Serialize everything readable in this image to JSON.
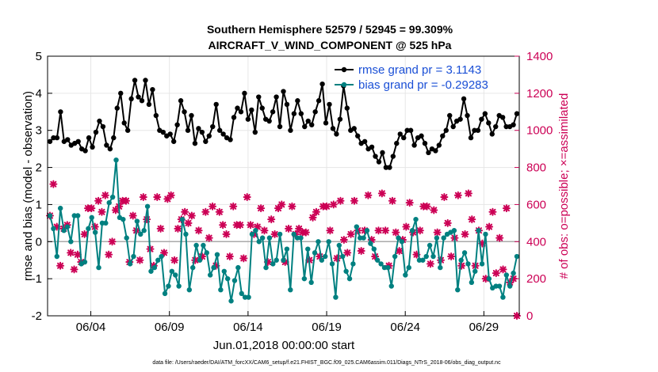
{
  "chart_data": {
    "type": "line",
    "title_line1": "Southern Hemisphere 52579 / 52945 = 99.309%",
    "title_line2": "AIRCRAFT_V_WIND_COMPONENT @ 525 hPa",
    "xlabel": "Jun.01,2018 00:00:00 start",
    "ylabel_left": "rmse and bias (model - observation)",
    "ylabel_right": "# of obs: o=possible; ×=assimilated",
    "footer": "data file: /Users/raeder/DAI/ATM_forcXX/CAM6_setup/f.e21.FHIST_BGC.f09_025.CAM6assim.011/Diags_NTrS_2018-06/obs_diag_output.nc",
    "x_range": [
      1.25,
      31.25
    ],
    "x_ticks": [
      {
        "value": 4,
        "label": "06/04"
      },
      {
        "value": 9,
        "label": "06/09"
      },
      {
        "value": 14,
        "label": "06/14"
      },
      {
        "value": 19,
        "label": "06/19"
      },
      {
        "value": 24,
        "label": "06/24"
      },
      {
        "value": 29,
        "label": "06/29"
      }
    ],
    "ylim_left": [
      -2,
      5
    ],
    "yticks_left": [
      "-2",
      "-1",
      "0",
      "1",
      "2",
      "3",
      "4",
      "5"
    ],
    "ylim_right": [
      0,
      1400
    ],
    "yticks_right": [
      "0",
      "200",
      "400",
      "600",
      "800",
      "1000",
      "1200",
      "1400"
    ],
    "colors": {
      "rmse": "#000000",
      "bias": "#008080",
      "obs": "#cc0055",
      "zero_line": "#aaaaaa",
      "legend_text": "#1a4fd6"
    },
    "series": [
      {
        "name": "rmse",
        "legend": "rmse grand pr = 3.1143",
        "values": [
          2.7,
          2.8,
          2.8,
          3.5,
          2.7,
          2.75,
          2.6,
          2.65,
          2.7,
          2.5,
          2.45,
          2.8,
          2.55,
          2.95,
          3.25,
          3.1,
          2.6,
          2.5,
          2.8,
          3.6,
          4.0,
          3.2,
          3.0,
          3.85,
          4.35,
          3.9,
          3.8,
          4.35,
          3.7,
          4.1,
          3.4,
          3.0,
          2.95,
          2.85,
          2.9,
          2.7,
          3.15,
          3.8,
          3.5,
          3.0,
          3.4,
          2.65,
          3.05,
          2.95,
          2.7,
          2.85,
          3.1,
          3.7,
          3.0,
          2.9,
          2.8,
          2.75,
          3.35,
          3.6,
          3.5,
          4.0,
          3.3,
          3.55,
          2.95,
          3.9,
          3.6,
          3.3,
          3.25,
          3.5,
          3.9,
          3.1,
          4.05,
          3.7,
          3.0,
          3.45,
          3.8,
          3.45,
          3.1,
          3.25,
          3.15,
          3.5,
          3.8,
          4.25,
          3.2,
          3.7,
          3.05,
          2.9,
          3.3,
          4.2,
          3.6,
          3.0,
          3.05,
          2.85,
          2.65,
          2.7,
          2.5,
          2.55,
          2.3,
          2.15,
          2.4,
          2.0,
          2.0,
          2.3,
          2.65,
          2.9,
          2.8,
          3.0,
          3.0,
          2.6,
          2.8,
          2.85,
          2.65,
          2.4,
          2.5,
          2.45,
          2.6,
          2.85,
          3.0,
          3.4,
          3.1,
          3.25,
          3.3,
          3.85,
          3.4,
          2.8,
          3.0,
          3.0,
          3.3,
          3.45,
          3.2,
          2.9,
          3.1,
          3.4,
          3.35,
          3.1,
          3.1,
          3.15,
          3.45
        ]
      },
      {
        "name": "bias",
        "legend": "bias grand pr = -0.29283",
        "values": [
          0.7,
          0.35,
          -0.4,
          0.9,
          0.3,
          0.4,
          0.0,
          0.7,
          0.7,
          -0.6,
          -0.55,
          0.35,
          0.65,
          0.25,
          -0.7,
          0.5,
          0.5,
          1.05,
          1.2,
          2.2,
          0.65,
          0.6,
          0.1,
          -0.6,
          -0.4,
          0.55,
          0.2,
          0.3,
          0.95,
          -0.8,
          -0.7,
          -0.5,
          -0.4,
          -1.4,
          -1.2,
          -0.8,
          -0.9,
          -1.2,
          0.6,
          0.2,
          -1.3,
          -0.7,
          -0.1,
          -0.5,
          -0.1,
          -0.3,
          -0.9,
          -0.7,
          -0.35,
          -1.3,
          -0.8,
          -1.0,
          -1.6,
          -1.05,
          -0.7,
          -1.4,
          -1.5,
          -1.5,
          0.2,
          0.3,
          0.0,
          0.1,
          -0.7,
          0.1,
          -0.6,
          -0.5,
          0.2,
          -0.5,
          -0.2,
          -1.3,
          0.2,
          0.1,
          0.1,
          -1.0,
          -0.2,
          -1.1,
          -0.3,
          0.0,
          -0.5,
          -0.4,
          0.0,
          -0.6,
          -1.5,
          -0.1,
          -0.4,
          -0.8,
          -1.0,
          -0.6,
          0.4,
          0.1,
          0.1,
          0.3,
          -0.05,
          -0.2,
          -0.5,
          -0.6,
          -0.7,
          -0.7,
          -1.2,
          -0.4,
          0.1,
          0.0,
          -0.9,
          -0.7,
          0.3,
          0.6,
          -0.5,
          -0.5,
          -0.4,
          -0.1,
          -0.4,
          0.1,
          -0.7,
          0.1,
          0.2,
          0.25,
          0.3,
          -1.3,
          -0.5,
          -0.3,
          -0.6,
          -1.1,
          -0.8,
          0.3,
          -0.6,
          0.2,
          -1.0,
          -1.25,
          -1.2,
          -1.2,
          -1.5,
          -0.9,
          -1.2,
          -0.85,
          -0.4
        ]
      },
      {
        "name": "obs",
        "axis": "right",
        "values": [
          540,
          710,
          480,
          270,
          470,
          490,
          340,
          250,
          330,
          290,
          440,
          580,
          580,
          480,
          620,
          560,
          650,
          330,
          400,
          570,
          590,
          620,
          620,
          290,
          540,
          460,
          300,
          640,
          520,
          360,
          270,
          640,
          470,
          340,
          630,
          650,
          300,
          470,
          520,
          560,
          500,
          540,
          300,
          460,
          320,
          560,
          420,
          590,
          270,
          560,
          490,
          440,
          320,
          590,
          490,
          490,
          310,
          640,
          490,
          440,
          480,
          580,
          460,
          290,
          520,
          440,
          580,
          600,
          290,
          470,
          590,
          440,
          470,
          450,
          450,
          300,
          530,
          560,
          320,
          590,
          590,
          460,
          600,
          310,
          620,
          410,
          340,
          440,
          620,
          460,
          350,
          460,
          650,
          410,
          320,
          460,
          660,
          460,
          270,
          620,
          450,
          350,
          410,
          480,
          610,
          450,
          330,
          460,
          590,
          590,
          280,
          570,
          450,
          300,
          640,
          500,
          320,
          420,
          650,
          270,
          440,
          660,
          520,
          270,
          460,
          390,
          200,
          480,
          560,
          230,
          420,
          250,
          580,
          180,
          200,
          0
        ]
      }
    ]
  }
}
